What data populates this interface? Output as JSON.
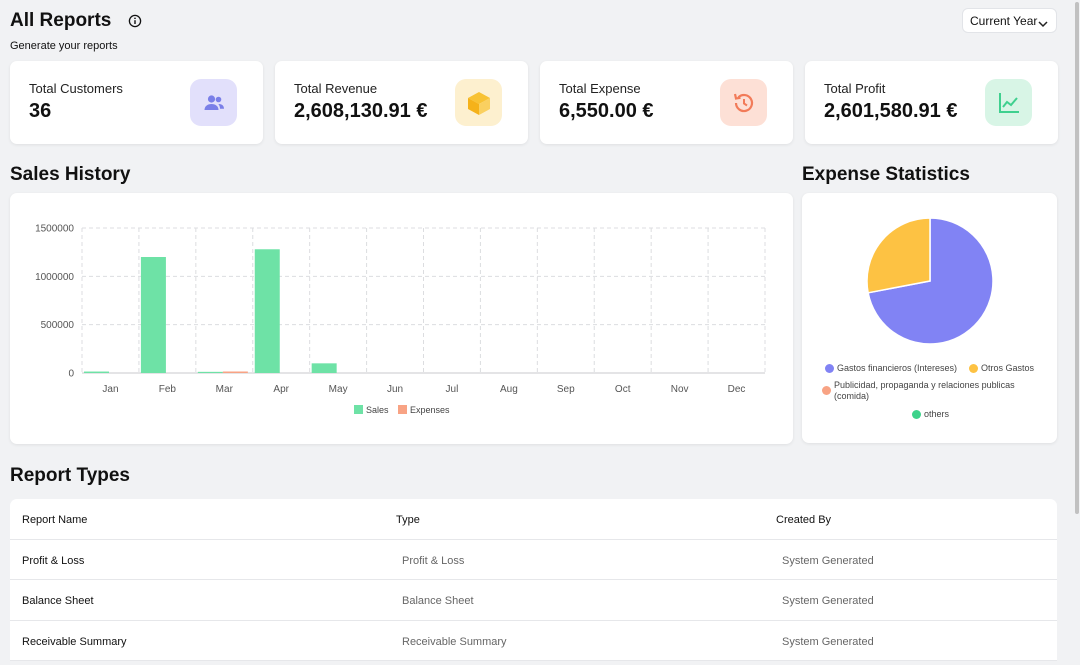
{
  "header": {
    "title": "All Reports",
    "subtitle": "Generate your reports",
    "period": "Current Year"
  },
  "stats": [
    {
      "label": "Total Customers",
      "value": "36",
      "icon": "users-icon",
      "icon_bg": "#e2e0fb",
      "icon_color": "#7a7fe8"
    },
    {
      "label": "Total Revenue",
      "value": "2,608,130.91 €",
      "icon": "box-icon",
      "icon_bg": "#fdf0cf",
      "icon_color": "#f8c233"
    },
    {
      "label": "Total Expense",
      "value": "6,550.00 €",
      "icon": "history-icon",
      "icon_bg": "#fde0d6",
      "icon_color": "#f27b59"
    },
    {
      "label": "Total Profit",
      "value": "2,601,580.91 €",
      "icon": "line-chart-icon",
      "icon_bg": "#d8f5e6",
      "icon_color": "#3fd08f"
    }
  ],
  "sales_history": {
    "title": "Sales History"
  },
  "expense_statistics": {
    "title": "Expense Statistics"
  },
  "report_types": {
    "title": "Report Types",
    "columns": [
      "Report Name",
      "Type",
      "Created By"
    ],
    "rows": [
      [
        "Profit & Loss",
        "Profit & Loss",
        "System Generated"
      ],
      [
        "Balance Sheet",
        "Balance Sheet",
        "System Generated"
      ],
      [
        "Receivable Summary",
        "Receivable Summary",
        "System Generated"
      ]
    ]
  },
  "chart_data": [
    {
      "type": "bar",
      "categories": [
        "Jan",
        "Feb",
        "Mar",
        "Apr",
        "May",
        "Jun",
        "Jul",
        "Aug",
        "Sep",
        "Oct",
        "Nov",
        "Dec"
      ],
      "series": [
        {
          "name": "Sales",
          "color": "#6ee2a6",
          "values": [
            15000,
            1200000,
            12000,
            1280000,
            100000,
            0,
            0,
            0,
            0,
            0,
            0,
            0
          ]
        },
        {
          "name": "Expenses",
          "color": "#f8a384",
          "values": [
            0,
            0,
            6550,
            0,
            0,
            0,
            0,
            0,
            0,
            0,
            0,
            0
          ]
        }
      ],
      "yticks": [
        "1500000",
        "1000000",
        "500000",
        "0"
      ],
      "ylim": [
        0,
        1500000
      ],
      "grid": true,
      "legend": "bottom"
    },
    {
      "type": "pie",
      "slices": [
        {
          "name": "Gastos financieros (Intereses)",
          "value": 72,
          "color": "#8183f4"
        },
        {
          "name": "Otros Gastos",
          "value": 28,
          "color": "#fdc243"
        },
        {
          "name": "Publicidad, propaganda y relaciones publicas (comida)",
          "value": 0,
          "color": "#f8a384"
        },
        {
          "name": "others",
          "value": 0,
          "color": "#3ed38b"
        }
      ],
      "legend": "bottom"
    }
  ]
}
